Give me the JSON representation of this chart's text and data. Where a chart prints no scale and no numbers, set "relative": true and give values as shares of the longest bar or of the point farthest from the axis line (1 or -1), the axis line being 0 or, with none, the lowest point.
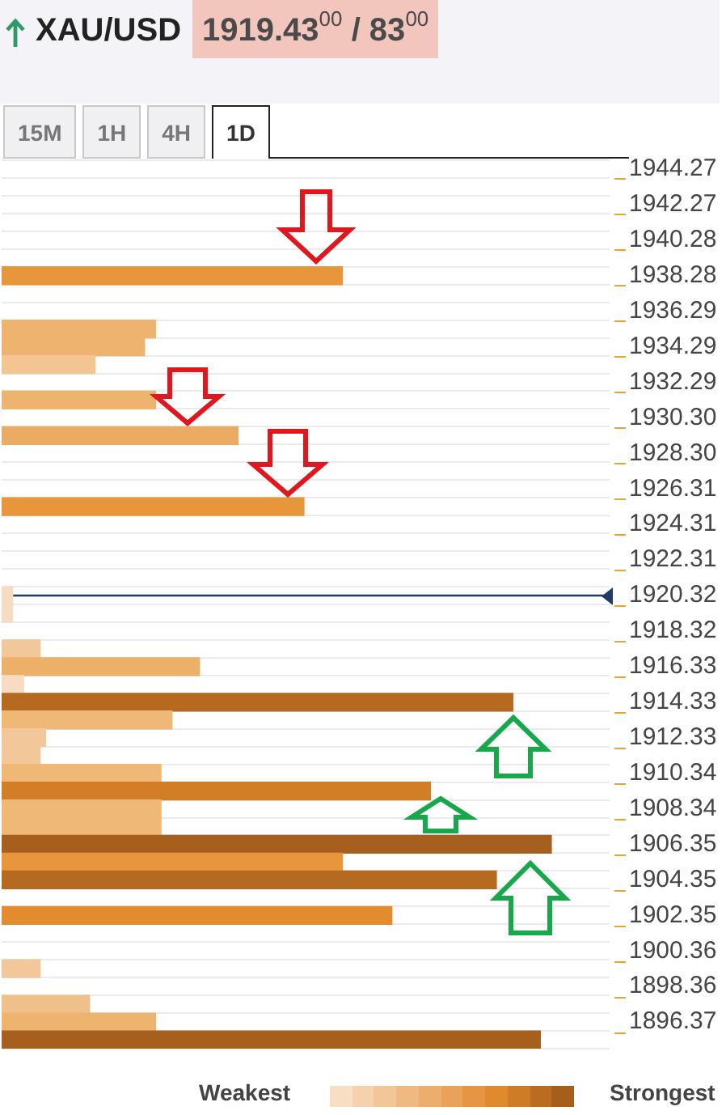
{
  "chart_data": {
    "type": "bar",
    "orientation": "horizontal",
    "relative": true,
    "title": "XAU/USD",
    "subtitle": "1919.43$^{00}$ / 83$^{00}$",
    "annotations": [
      "15M",
      "1H",
      "4H",
      "1D",
      "Weakest",
      "Strongest"
    ],
    "categories": [
      "1944.27",
      null,
      "1942.27",
      null,
      "1940.28",
      null,
      "1938.28",
      null,
      "1936.29",
      null,
      "1934.29",
      null,
      "1932.29",
      null,
      "1930.30",
      null,
      "1928.30",
      null,
      "1926.31",
      null,
      "1924.31",
      null,
      "1922.31",
      null,
      "1920.32",
      null,
      "1918.32",
      null,
      "1916.33",
      null,
      "1914.33",
      null,
      "1912.33",
      null,
      "1910.34",
      null,
      "1908.34",
      null,
      "1906.35",
      null,
      "1904.35",
      null,
      "1902.35",
      null,
      "1900.36",
      null,
      "1898.36",
      null,
      "1896.37",
      null
    ],
    "values": [
      null,
      null,
      null,
      null,
      null,
      null,
      0.62,
      null,
      null,
      0.28,
      0.26,
      0.17,
      null,
      0.28,
      null,
      0.43,
      null,
      null,
      null,
      0.55,
      null,
      null,
      null,
      null,
      0.02,
      0.02,
      null,
      0.07,
      0.36,
      0.04,
      0.93,
      0.31,
      0.08,
      0.07,
      0.29,
      0.78,
      0.29,
      0.29,
      1,
      0.62,
      0.9,
      null,
      0.71,
      null,
      null,
      0.07,
      null,
      0.16,
      0.28,
      0.98
    ],
    "colors": [
      null,
      null,
      null,
      null,
      null,
      null,
      "#e8963c",
      null,
      null,
      "#eeb36e",
      "#eeb36e",
      "#f2c593",
      null,
      "#eeb36e",
      null,
      "#ecab62",
      null,
      null,
      null,
      "#e8963c",
      null,
      null,
      null,
      null,
      "#f6dcc3",
      "#f6dcc3",
      null,
      "#f2c89b",
      "#edb068",
      "#f6dcc3",
      "#b56a1f",
      "#efb877",
      "#f2c89b",
      "#f2c89b",
      "#efb877",
      "#d27e26",
      "#efb877",
      "#efb877",
      "#a65f1c",
      "#e8963c",
      "#b56a1f",
      null,
      "#e28b2f",
      null,
      null,
      "#f2c89b",
      null,
      "#f0c08a",
      "#eeb36e",
      "#a65f1c"
    ],
    "grid": "y",
    "tick_labels": "y",
    "ref_lines": [
      {
        "axis": "y",
        "value": "1920.32",
        "color": "#223a6b"
      }
    ]
  }
}
